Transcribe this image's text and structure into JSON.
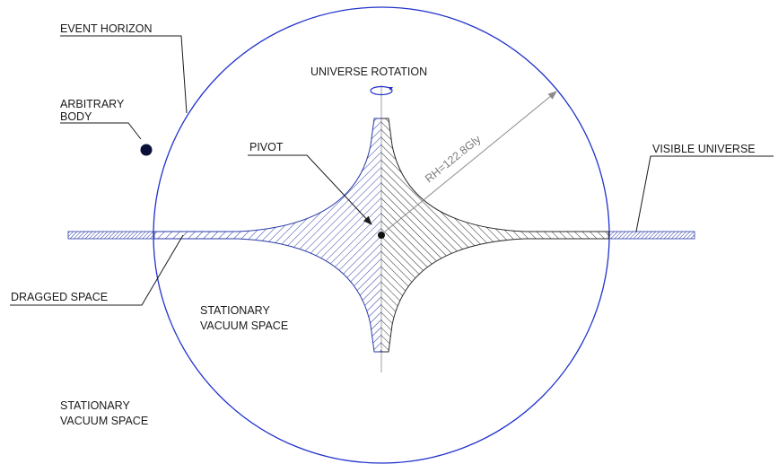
{
  "labels": {
    "event_horizon": "EVENT HORIZON",
    "arbitrary_body_line1": "ARBITRARY",
    "arbitrary_body_line2": "BODY",
    "universe_rotation": "UNIVERSE ROTATION",
    "pivot": "PIVOT",
    "visible_universe": "VISIBLE UNIVERSE",
    "dragged_space": "DRAGGED SPACE",
    "stationary_inner_line1": "STATIONARY",
    "stationary_inner_line2": "VACUUM SPACE",
    "stationary_outer_line1": "STATIONARY",
    "stationary_outer_line2": "VACUUM SPACE",
    "radius": "RH=122.8Gly"
  },
  "colors": {
    "horizon": "#2233cc",
    "hatch_blue": "#2a3aa8",
    "hatch_dark": "#2b2b2b",
    "ink": "#1a1a1a",
    "dimension": "#8a8a8a",
    "body": "#0a0f3a"
  }
}
